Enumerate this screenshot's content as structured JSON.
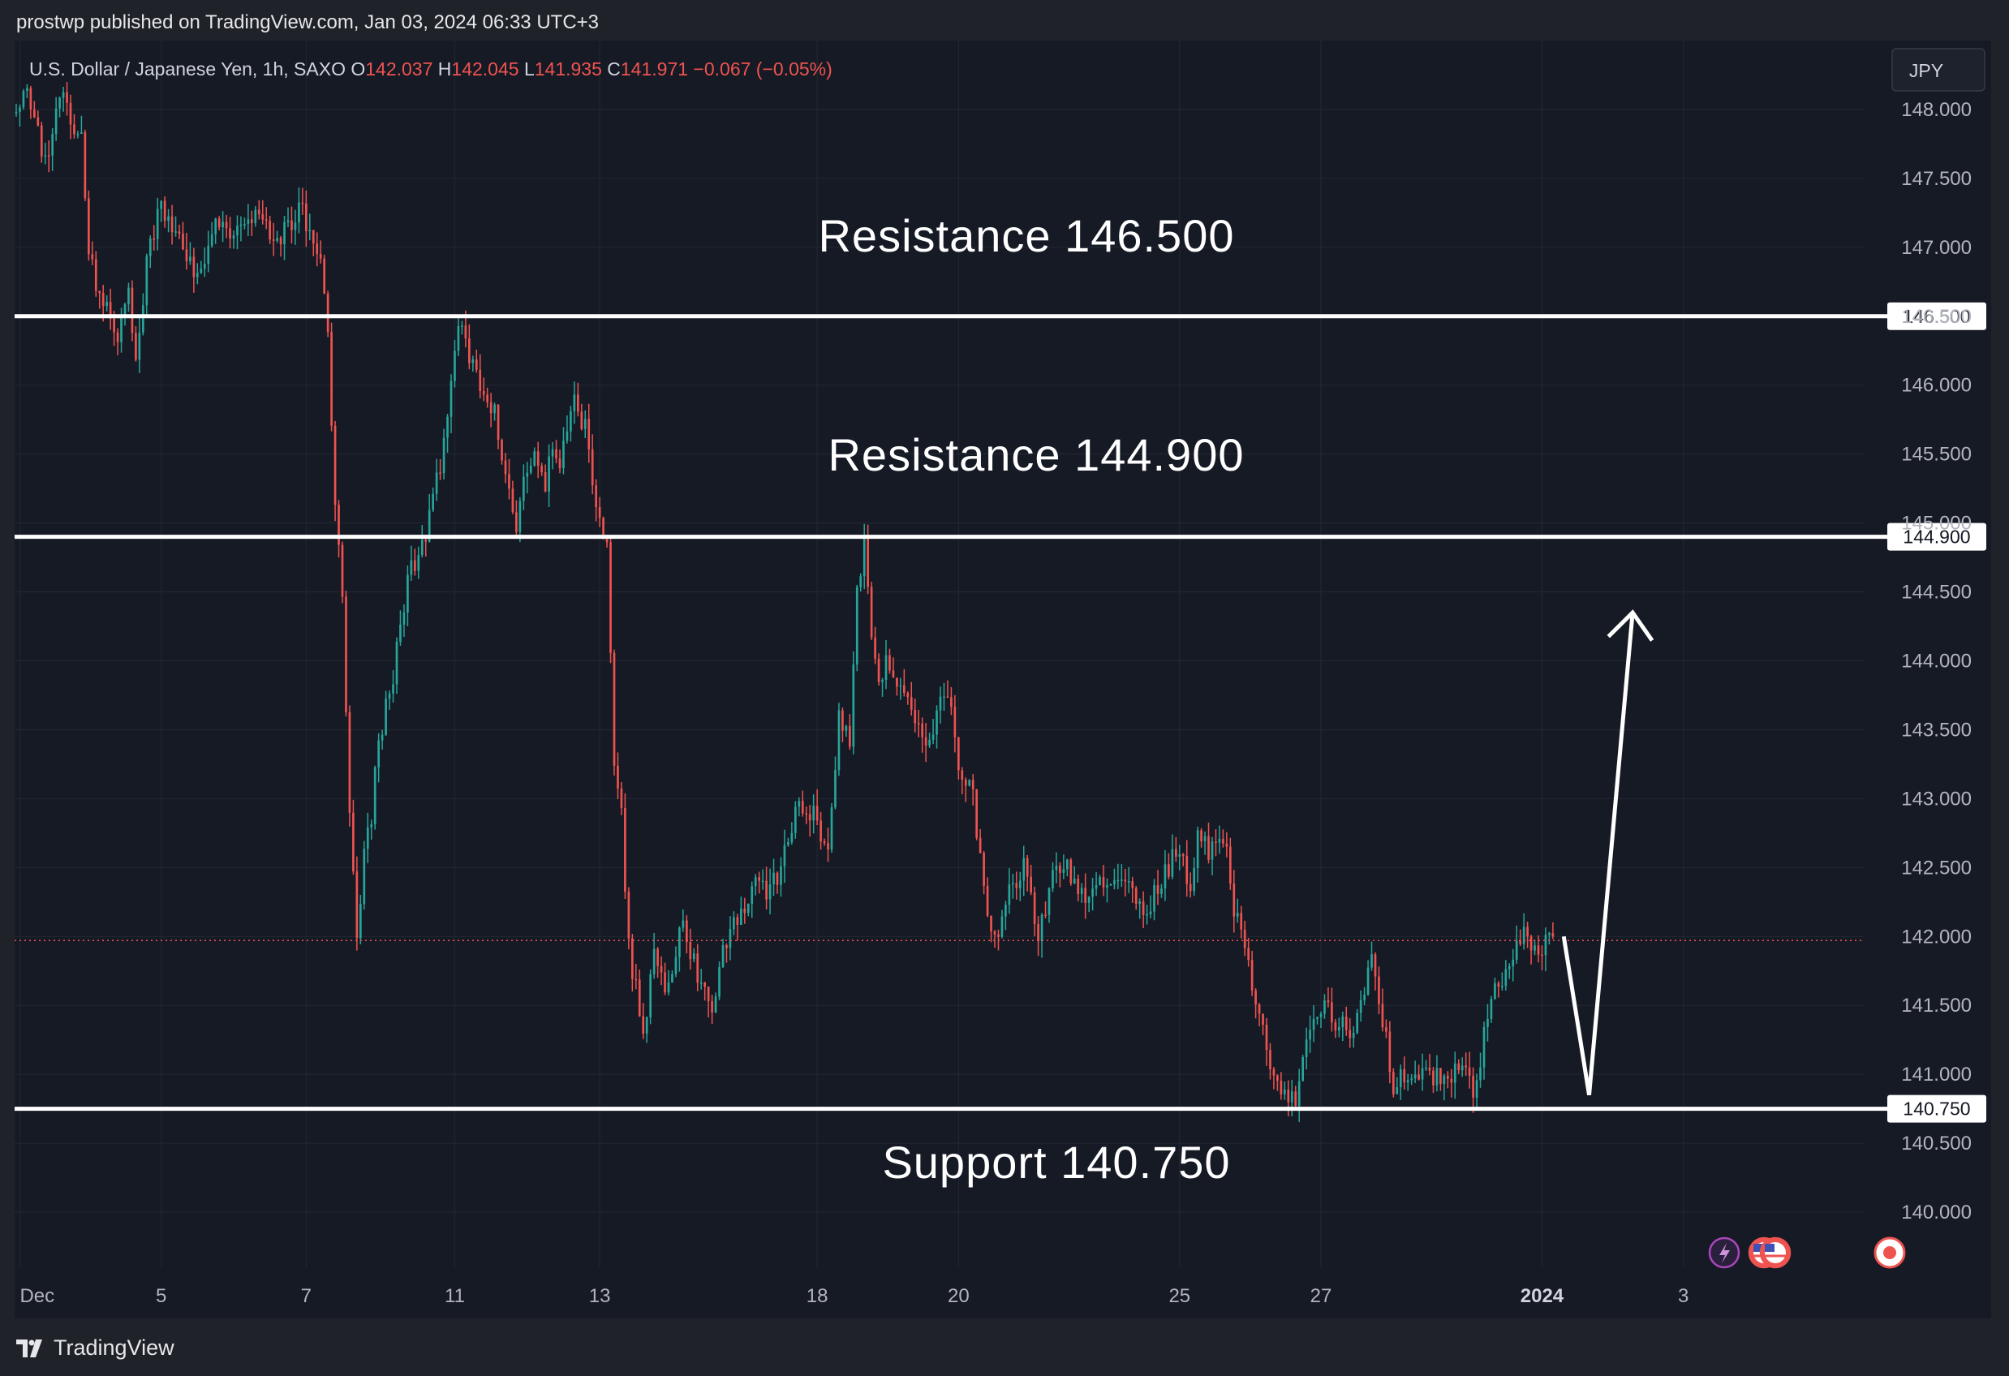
{
  "header": {
    "published": "prostwp published on TradingView.com, Jan 03, 2024 06:33 UTC+3"
  },
  "footer": {
    "brand": "TradingView"
  },
  "legend": {
    "symbol": "U.S. Dollar / Japanese Yen, 1h, SAXO",
    "o_label": "O",
    "o_value": "142.037",
    "h_label": "H",
    "h_value": "142.045",
    "l_label": "L",
    "l_value": "141.935",
    "c_label": "C",
    "c_value": "141.971",
    "change": "−0.067 (−0.05%)"
  },
  "currency_badge": "JPY",
  "colors": {
    "background": "#161a25",
    "grid": "#242833",
    "up": "#26a69a",
    "down": "#ef5350",
    "text": "#b2b5be",
    "level_line": "#ffffff",
    "annotation": "#ffffff",
    "price_line": "#ef5350"
  },
  "chart_data": {
    "type": "candlestick",
    "title": "U.S. Dollar / Japanese Yen, 1h, SAXO",
    "y_axis": {
      "ticks": [
        "140.000",
        "140.500",
        "141.000",
        "141.500",
        "142.000",
        "142.500",
        "143.000",
        "143.500",
        "144.000",
        "144.500",
        "145.000",
        "145.500",
        "146.000",
        "146.500",
        "147.000",
        "147.500",
        "148.000"
      ],
      "ylim": [
        139.6,
        148.5
      ]
    },
    "x_axis": {
      "ticks": [
        {
          "label": "Dec",
          "idx": 1
        },
        {
          "label": "5",
          "idx": 40
        },
        {
          "label": "7",
          "idx": 80
        },
        {
          "label": "11",
          "idx": 121
        },
        {
          "label": "13",
          "idx": 161
        },
        {
          "label": "18",
          "idx": 221
        },
        {
          "label": "20",
          "idx": 260
        },
        {
          "label": "25",
          "idx": 321
        },
        {
          "label": "27",
          "idx": 360
        },
        {
          "label": "2024",
          "idx": 421,
          "bold": true
        },
        {
          "label": "3",
          "idx": 460
        }
      ],
      "bars_total": 510
    },
    "price_anchors": [
      [
        0,
        147.9
      ],
      [
        2,
        148.2
      ],
      [
        8,
        147.6
      ],
      [
        12,
        148.1
      ],
      [
        18,
        147.8
      ],
      [
        20,
        146.9
      ],
      [
        24,
        146.6
      ],
      [
        28,
        146.4
      ],
      [
        31,
        146.7
      ],
      [
        33,
        146.2
      ],
      [
        36,
        146.9
      ],
      [
        40,
        147.3
      ],
      [
        45,
        147.1
      ],
      [
        50,
        146.8
      ],
      [
        56,
        147.2
      ],
      [
        62,
        147.1
      ],
      [
        66,
        147.3
      ],
      [
        72,
        147.0
      ],
      [
        78,
        147.3
      ],
      [
        84,
        146.9
      ],
      [
        86,
        146.3
      ],
      [
        88,
        145.1
      ],
      [
        90,
        144.5
      ],
      [
        92,
        142.9
      ],
      [
        94,
        141.9
      ],
      [
        96,
        142.6
      ],
      [
        98,
        142.9
      ],
      [
        100,
        143.4
      ],
      [
        104,
        143.9
      ],
      [
        108,
        144.6
      ],
      [
        112,
        144.8
      ],
      [
        116,
        145.3
      ],
      [
        118,
        145.6
      ],
      [
        120,
        146.1
      ],
      [
        122,
        146.5
      ],
      [
        124,
        146.3
      ],
      [
        128,
        146.0
      ],
      [
        132,
        145.8
      ],
      [
        134,
        145.4
      ],
      [
        136,
        145.3
      ],
      [
        138,
        144.9
      ],
      [
        140,
        145.4
      ],
      [
        142,
        145.5
      ],
      [
        146,
        145.3
      ],
      [
        148,
        145.6
      ],
      [
        150,
        145.4
      ],
      [
        154,
        145.9
      ],
      [
        158,
        145.6
      ],
      [
        160,
        145.1
      ],
      [
        163,
        144.8
      ],
      [
        165,
        143.3
      ],
      [
        167,
        142.9
      ],
      [
        169,
        141.9
      ],
      [
        171,
        141.6
      ],
      [
        173,
        141.3
      ],
      [
        176,
        141.9
      ],
      [
        180,
        141.6
      ],
      [
        184,
        142.1
      ],
      [
        188,
        141.7
      ],
      [
        192,
        141.4
      ],
      [
        196,
        142.0
      ],
      [
        200,
        142.2
      ],
      [
        204,
        142.4
      ],
      [
        208,
        142.3
      ],
      [
        212,
        142.6
      ],
      [
        216,
        143.0
      ],
      [
        220,
        142.9
      ],
      [
        224,
        142.6
      ],
      [
        227,
        143.6
      ],
      [
        230,
        143.4
      ],
      [
        232,
        144.5
      ],
      [
        234,
        144.8
      ],
      [
        236,
        144.2
      ],
      [
        238,
        143.9
      ],
      [
        240,
        144.0
      ],
      [
        244,
        143.8
      ],
      [
        248,
        143.6
      ],
      [
        252,
        143.4
      ],
      [
        256,
        143.8
      ],
      [
        258,
        143.6
      ],
      [
        260,
        143.2
      ],
      [
        264,
        143.0
      ],
      [
        266,
        142.6
      ],
      [
        268,
        142.2
      ],
      [
        270,
        142.0
      ],
      [
        274,
        142.3
      ],
      [
        278,
        142.5
      ],
      [
        282,
        142.0
      ],
      [
        286,
        142.4
      ],
      [
        290,
        142.5
      ],
      [
        294,
        142.3
      ],
      [
        298,
        142.4
      ],
      [
        304,
        142.4
      ],
      [
        308,
        142.3
      ],
      [
        312,
        142.2
      ],
      [
        316,
        142.4
      ],
      [
        320,
        142.6
      ],
      [
        324,
        142.4
      ],
      [
        326,
        142.7
      ],
      [
        330,
        142.6
      ],
      [
        334,
        142.7
      ],
      [
        336,
        142.2
      ],
      [
        338,
        142.0
      ],
      [
        340,
        141.8
      ],
      [
        342,
        141.5
      ],
      [
        346,
        141.1
      ],
      [
        350,
        140.8
      ],
      [
        353,
        140.8
      ],
      [
        356,
        141.3
      ],
      [
        360,
        141.5
      ],
      [
        364,
        141.4
      ],
      [
        368,
        141.3
      ],
      [
        372,
        141.6
      ],
      [
        374,
        141.8
      ],
      [
        378,
        141.3
      ],
      [
        380,
        140.9
      ],
      [
        382,
        141.0
      ],
      [
        400,
        141.0
      ],
      [
        402,
        140.8
      ],
      [
        405,
        141.3
      ],
      [
        408,
        141.6
      ],
      [
        412,
        141.8
      ],
      [
        416,
        142.0
      ],
      [
        420,
        141.9
      ],
      [
        424,
        142.0
      ]
    ],
    "annotations": {
      "res1": "Resistance 146.500",
      "res2": "Resistance 144.900",
      "support": "Support 140.750"
    },
    "levels": [
      {
        "price": 146.5,
        "label": "146.500"
      },
      {
        "price": 144.9,
        "label": "144.900"
      },
      {
        "price": 140.75,
        "label": "140.750"
      }
    ],
    "last_price": 141.971,
    "projection": [
      {
        "idx": 427,
        "price": 142.0
      },
      {
        "idx": 434,
        "price": 140.85
      },
      {
        "idx": 446,
        "price": 144.35
      }
    ]
  }
}
